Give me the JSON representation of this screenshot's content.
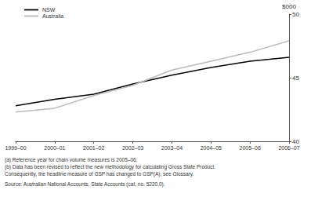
{
  "chart_data": {
    "type": "line",
    "ylabel": "$000",
    "categories": [
      "1999–00",
      "2000–01",
      "2001–02",
      "2002–03",
      "2003–04",
      "2004–05",
      "2005–06",
      "2006–07"
    ],
    "series": [
      {
        "name": "NSW",
        "color": "#000000",
        "values": [
          42.8,
          43.3,
          43.7,
          44.5,
          45.2,
          45.8,
          46.3,
          46.6
        ]
      },
      {
        "name": "Australia",
        "color": "#bbbbbb",
        "values": [
          42.3,
          42.6,
          43.6,
          44.4,
          45.6,
          46.3,
          47.0,
          47.9
        ]
      }
    ],
    "ylim": [
      40,
      50
    ],
    "yticks": [
      40,
      45,
      50
    ],
    "grid": false,
    "legend": "upper left",
    "footnotes": [
      "(a) Reference year for chain volume measures is 2005–06.",
      "(b) Data has been revised to reflect the new methodology for calculating Gross State Product.",
      "Consequently, the headline measure of GSP has changed to GSP(A), see Glossary."
    ],
    "source": "Source: Australian National Accounts, State Accounts (cat. no. 5220.0)."
  }
}
